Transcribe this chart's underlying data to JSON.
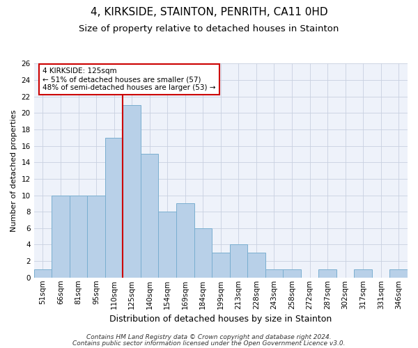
{
  "title1": "4, KIRKSIDE, STAINTON, PENRITH, CA11 0HD",
  "title2": "Size of property relative to detached houses in Stainton",
  "xlabel": "Distribution of detached houses by size in Stainton",
  "ylabel": "Number of detached properties",
  "categories": [
    "51sqm",
    "66sqm",
    "81sqm",
    "95sqm",
    "110sqm",
    "125sqm",
    "140sqm",
    "154sqm",
    "169sqm",
    "184sqm",
    "199sqm",
    "213sqm",
    "228sqm",
    "243sqm",
    "258sqm",
    "272sqm",
    "287sqm",
    "302sqm",
    "317sqm",
    "331sqm",
    "346sqm"
  ],
  "values": [
    1,
    10,
    10,
    10,
    17,
    21,
    15,
    8,
    9,
    6,
    3,
    4,
    3,
    1,
    1,
    0,
    1,
    0,
    1,
    0,
    1
  ],
  "highlight_cat": "125sqm",
  "bar_color": "#b8d0e8",
  "bar_edge_color": "#7aaed0",
  "highlight_line_color": "#cc0000",
  "annotation_text": "4 KIRKSIDE: 125sqm\n← 51% of detached houses are smaller (57)\n48% of semi-detached houses are larger (53) →",
  "annotation_box_color": "#ffffff",
  "annotation_box_edge": "#cc0000",
  "ylim": [
    0,
    26
  ],
  "yticks": [
    0,
    2,
    4,
    6,
    8,
    10,
    12,
    14,
    16,
    18,
    20,
    22,
    24,
    26
  ],
  "footnote1": "Contains HM Land Registry data © Crown copyright and database right 2024.",
  "footnote2": "Contains public sector information licensed under the Open Government Licence v3.0.",
  "bg_color": "#eef2fa",
  "grid_color": "#c8d0e0",
  "title1_fontsize": 11,
  "title2_fontsize": 9.5,
  "tick_fontsize": 7.5,
  "ylabel_fontsize": 8,
  "xlabel_fontsize": 9,
  "annotation_fontsize": 7.5,
  "footnote_fontsize": 6.5
}
